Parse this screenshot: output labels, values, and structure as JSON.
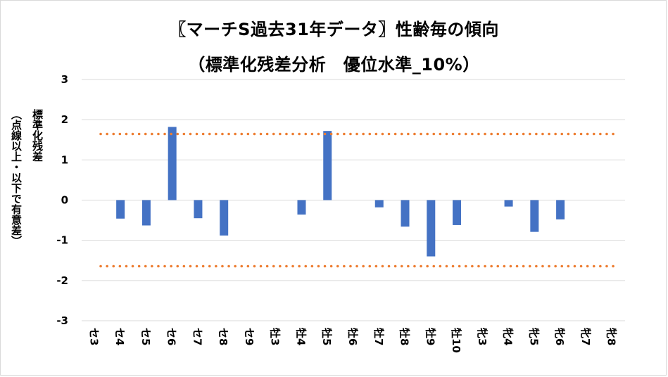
{
  "chart_data": {
    "type": "bar",
    "title": "〖マーチS過去31年データ〗性齢毎の傾向",
    "subtitle": "（標準化残差分析　優位水準_10%）",
    "ylabel_line1": "標準化残差",
    "ylabel_line2": "（点線以上・以下で有意差）",
    "xlabel": "",
    "categories": [
      "セ3",
      "セ4",
      "セ5",
      "セ6",
      "セ7",
      "セ8",
      "セ9",
      "牡3",
      "牡4",
      "牡5",
      "牡6",
      "牡7",
      "牡8",
      "牡9",
      "牡10",
      "牝3",
      "牝4",
      "牝5",
      "牝6",
      "牝7",
      "牝8"
    ],
    "values": [
      0,
      -0.46,
      -0.63,
      1.82,
      -0.45,
      -0.88,
      0,
      0,
      -0.36,
      1.72,
      0,
      -0.18,
      -0.66,
      -1.4,
      -0.62,
      0,
      -0.16,
      -0.79,
      -0.48,
      0,
      0
    ],
    "ylim": [
      -3,
      3
    ],
    "yticks": [
      "3",
      "2",
      "1",
      "0",
      "-1",
      "-2",
      "-3"
    ],
    "threshold_upper": 1.645,
    "threshold_lower": -1.645,
    "grid": true,
    "bar_color": "#4472c4",
    "threshold_color": "#ed7d31",
    "grid_color": "#d9d9d9"
  }
}
